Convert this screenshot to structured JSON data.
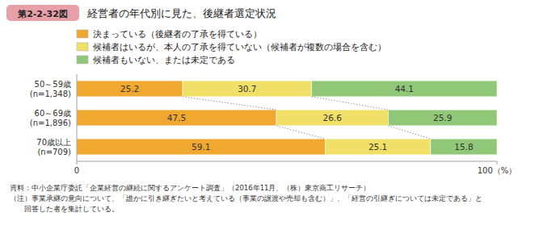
{
  "chart_data": {
    "type": "bar",
    "orientation": "horizontal",
    "stacked": true,
    "data_labels": true,
    "grid": false,
    "legend": "top",
    "figure_label": "第2-2-32図",
    "title": "経営者の年代別に見た、後継者選定状況",
    "categories": [
      "50～59歳\n(n=1,348)",
      "60～69歳\n(n=1,896)",
      "70歳以上\n(n=709)"
    ],
    "series": [
      {
        "name": "決まっている（後継者の了承を得ている）",
        "color": "#F0A830",
        "values": [
          25.2,
          47.5,
          59.1
        ]
      },
      {
        "name": "候補者はいるが、本人の了承を得ていない（候補者が複数の場合を含む）",
        "color": "#F0E068",
        "values": [
          30.7,
          26.6,
          25.1
        ]
      },
      {
        "name": "候補者もいない、または未定である",
        "color": "#90C878",
        "values": [
          44.1,
          25.9,
          15.8
        ]
      }
    ],
    "xlim": [
      0,
      100
    ],
    "xticks": [
      0,
      {
        "value": 100,
        "label": "100（%）"
      }
    ],
    "footer": [
      "資料：中小企業庁委託「企業経営の継続に関するアンケート調査」（2016年11月、（株）東京商工リサーチ）",
      "（注）事業承継の意向について、「誰かに引き継ぎたいと考えている（事業の譲渡や売却も含む）」、「経営の引継ぎについては未定である」と",
      "　　回答した者を集計している。"
    ]
  }
}
